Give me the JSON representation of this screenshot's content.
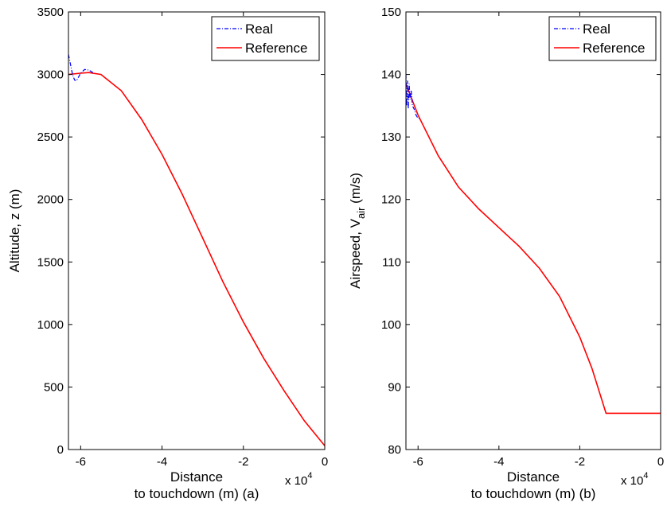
{
  "chart_data": [
    {
      "type": "line",
      "xlabel_line1": "Distance",
      "xlabel_line2": "to touchdown (m) (a)",
      "ylabel": "Altitude, z (m)",
      "x_exponent": "x 10",
      "x_exponent_power": "4",
      "xlim": [
        -6.3,
        0
      ],
      "ylim": [
        0,
        3500
      ],
      "xticks": [
        -6,
        -4,
        -2,
        0
      ],
      "xtick_labels": [
        "-6",
        "-4",
        "-2",
        "0"
      ],
      "yticks": [
        0,
        500,
        1000,
        1500,
        2000,
        2500,
        3000,
        3500
      ],
      "ytick_labels": [
        "0",
        "500",
        "1000",
        "1500",
        "2000",
        "2500",
        "3000",
        "3500"
      ],
      "legend_position": "top-right",
      "grid": false,
      "series": [
        {
          "name": "Real",
          "color": "#0000ff",
          "style": "dash-dot",
          "x": [
            -6.3,
            -6.25,
            -6.2,
            -6.15,
            -6.1,
            -6.0,
            -5.9,
            -5.8,
            -5.7
          ],
          "y": [
            3160,
            3080,
            3000,
            2955,
            2950,
            3010,
            3040,
            3035,
            3015
          ]
        },
        {
          "name": "Reference",
          "color": "#ff0000",
          "style": "solid",
          "x": [
            -6.3,
            -6.0,
            -5.8,
            -5.5,
            -5.0,
            -4.5,
            -4.0,
            -3.5,
            -3.0,
            -2.5,
            -2.0,
            -1.5,
            -1.0,
            -0.5,
            0.0
          ],
          "y": [
            3000,
            3010,
            3015,
            3000,
            2870,
            2640,
            2360,
            2040,
            1690,
            1340,
            1020,
            730,
            470,
            230,
            30
          ]
        }
      ]
    },
    {
      "type": "line",
      "xlabel_line1": "Distance",
      "xlabel_line2": "to touchdown (m) (b)",
      "ylabel_main": "Airspeed, V",
      "ylabel_sub": "air",
      "ylabel_units": " (m/s)",
      "x_exponent": "x 10",
      "x_exponent_power": "4",
      "xlim": [
        -6.3,
        0
      ],
      "ylim": [
        80,
        150
      ],
      "xticks": [
        -6,
        -4,
        -2,
        0
      ],
      "xtick_labels": [
        "-6",
        "-4",
        "-2",
        "0"
      ],
      "yticks": [
        80,
        90,
        100,
        110,
        120,
        130,
        140,
        150
      ],
      "ytick_labels": [
        "80",
        "90",
        "100",
        "110",
        "120",
        "130",
        "140",
        "150"
      ],
      "legend_position": "top-right",
      "grid": false,
      "series": [
        {
          "name": "Real",
          "color": "#0000ff",
          "style": "dash-dot",
          "x": [
            -6.3,
            -6.28,
            -6.26,
            -6.24,
            -6.22,
            -6.2,
            -6.17,
            -6.14,
            -6.1,
            -6.05,
            -6.0,
            -5.95
          ],
          "y": [
            140,
            135,
            139,
            134.5,
            138.5,
            136,
            137.5,
            135,
            134.5,
            133.5,
            133,
            133
          ]
        },
        {
          "name": "Reference",
          "color": "#ff0000",
          "style": "solid",
          "x": [
            -6.3,
            -6.0,
            -5.5,
            -5.0,
            -4.5,
            -4.0,
            -3.5,
            -3.0,
            -2.5,
            -2.0,
            -1.7,
            -1.35,
            -1.0,
            -0.5,
            0.0
          ],
          "y": [
            138.5,
            133.5,
            127,
            122,
            118.5,
            115.5,
            112.5,
            109,
            104.5,
            98,
            93,
            85.8,
            85.8,
            85.8,
            85.8
          ]
        }
      ]
    }
  ]
}
